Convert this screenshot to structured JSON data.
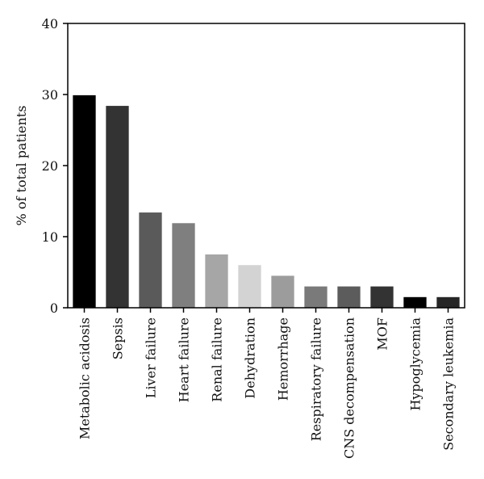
{
  "chart_data": {
    "type": "bar",
    "title": "",
    "xlabel": "",
    "ylabel": "% of total patients",
    "ylim": [
      0,
      40
    ],
    "yticks": [
      0,
      10,
      20,
      30,
      40
    ],
    "grid": false,
    "categories": [
      "Metabolic acidosis",
      "Sepsis",
      "Liver failure",
      "Heart failure",
      "Renal failure",
      "Dehydration",
      "Hemorrhage",
      "Respiratory failure",
      "CNS decompensation",
      "MOF",
      "Hypoglycemia",
      "Secondary leukemia"
    ],
    "values": [
      29.9,
      28.4,
      13.4,
      11.9,
      7.5,
      6.0,
      4.5,
      3.0,
      3.0,
      3.0,
      1.5,
      1.5
    ],
    "colors": [
      "#000000",
      "#333333",
      "#5a5a5a",
      "#7f7f7f",
      "#a6a6a6",
      "#d3d3d3",
      "#9c9c9c",
      "#7a7a7a",
      "#5c5c5c",
      "#333333",
      "#000000",
      "#262626"
    ]
  }
}
